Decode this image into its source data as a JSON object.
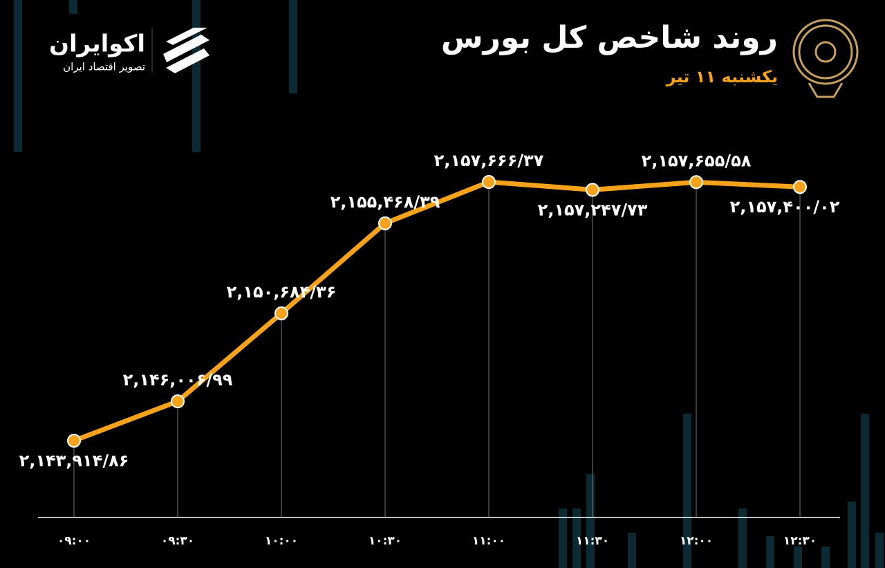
{
  "chart_data": {
    "type": "line",
    "title": "روند شاخص کل بورس",
    "subtitle": "یکشنبه ۱۱ تیر",
    "brand": {
      "name": "اکوایران",
      "tagline": "تصویر اقتصاد ایران"
    },
    "categories": [
      "۰۹:۰۰",
      "۰۹:۳۰",
      "۱۰:۰۰",
      "۱۰:۳۰",
      "۱۱:۰۰",
      "۱۱:۳۰",
      "۱۲:۰۰",
      "۱۲:۳۰"
    ],
    "values": [
      2143914.86,
      2146006.99,
      2150684.36,
      2155468.39,
      2157666.37,
      2157247.73,
      2157655.58,
      2157400.02
    ],
    "value_labels": [
      "۲,۱۴۳,۹۱۴/۸۶",
      "۲,۱۴۶,۰۰۶/۹۹",
      "۲,۱۵۰,۶۸۴/۳۶",
      "۲,۱۵۵,۴۶۸/۳۹",
      "۲,۱۵۷,۶۶۶/۳۷",
      "۲,۱۵۷,۲۴۷/۷۳",
      "۲,۱۵۷,۶۵۵/۵۸",
      "۲,۱۵۷,۴۰۰/۰۲"
    ],
    "color": "#f7a21b"
  }
}
